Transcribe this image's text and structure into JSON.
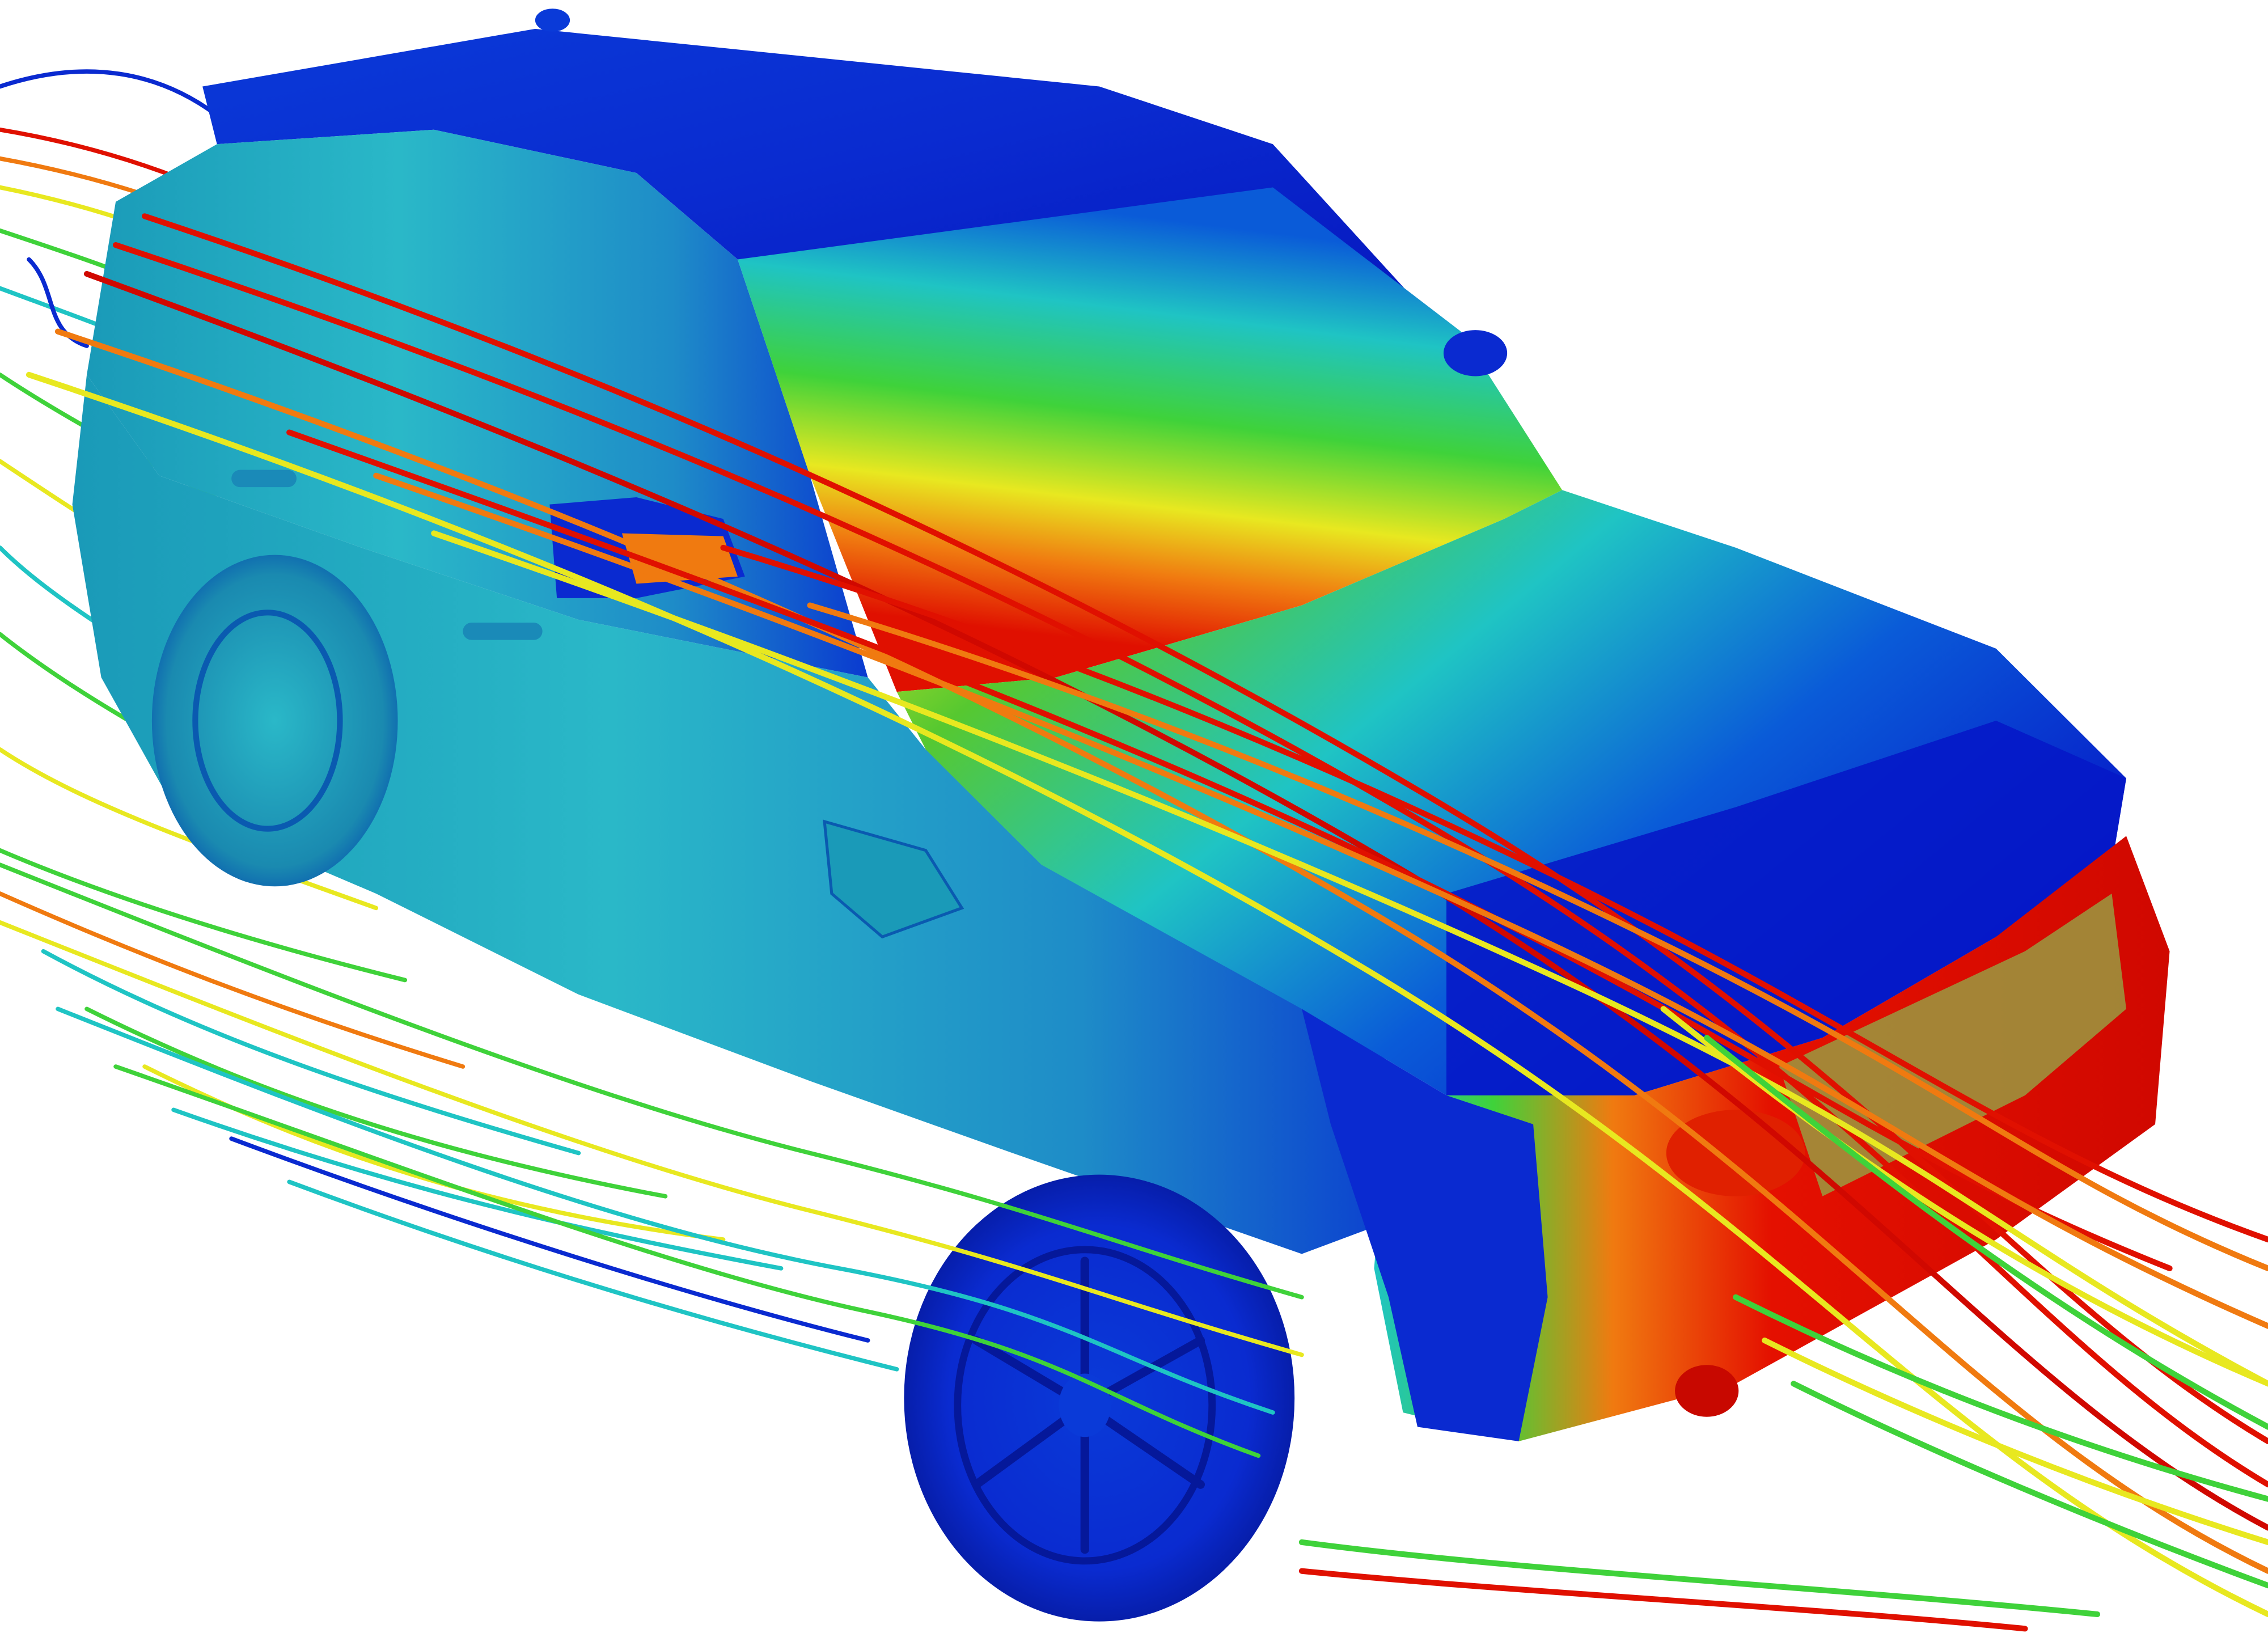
{
  "scene": {
    "subject": "suv-cfd-simulation",
    "background_color": "#ffffff",
    "colormap": {
      "name": "rainbow-pressure",
      "stops": [
        "#0015c8",
        "#0a5bd8",
        "#1fc4c4",
        "#3fd23a",
        "#e8e820",
        "#f07a10",
        "#e01000"
      ]
    },
    "regions": {
      "roof": "#0a2fd8",
      "windshield_low": "#e01000",
      "windshield_mid": "#f0d010",
      "windshield_high": "#3fd23a",
      "hood_front": "#0618c8",
      "hood_rear": "#56c830",
      "side_body": "#2aa8c8",
      "front_bumper": "#e41000",
      "front_fascia": "#0a2ad0",
      "wheels": "#0a2bd8"
    },
    "streamline_colors": [
      "#e01000",
      "#f07a10",
      "#e8e820",
      "#3fd23a",
      "#1fc4c4",
      "#0a2ad0"
    ],
    "streamline_count_hint": "many"
  }
}
